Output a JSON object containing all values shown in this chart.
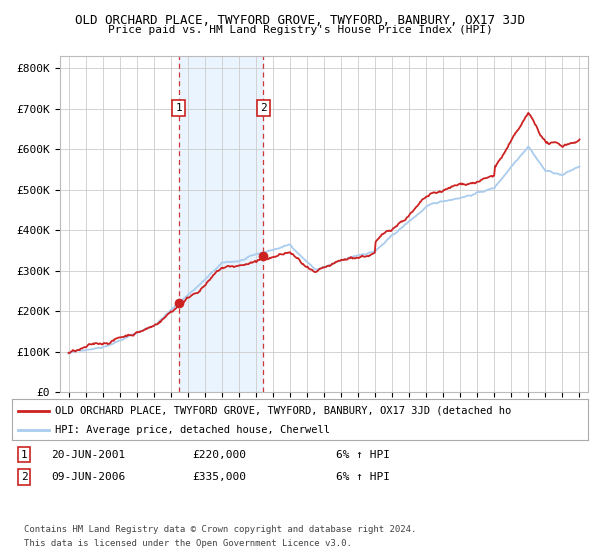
{
  "title": "OLD ORCHARD PLACE, TWYFORD GROVE, TWYFORD, BANBURY, OX17 3JD",
  "subtitle": "Price paid vs. HM Land Registry's House Price Index (HPI)",
  "ylim": [
    0,
    830000
  ],
  "yticks": [
    0,
    100000,
    200000,
    300000,
    400000,
    500000,
    600000,
    700000,
    800000
  ],
  "ytick_labels": [
    "£0",
    "£100K",
    "£200K",
    "£300K",
    "£400K",
    "£500K",
    "£600K",
    "£700K",
    "£800K"
  ],
  "background_color": "#ffffff",
  "plot_bg_color": "#ffffff",
  "grid_color": "#cccccc",
  "hpi_color": "#aaccee",
  "price_color": "#cc2222",
  "sale1_x": 2001.47,
  "sale1_y": 220000,
  "sale2_x": 2006.44,
  "sale2_y": 335000,
  "legend_price_label": "OLD ORCHARD PLACE, TWYFORD GROVE, TWYFORD, BANBURY, OX17 3JD (detached ho",
  "legend_hpi_label": "HPI: Average price, detached house, Cherwell",
  "annotation1_date": "20-JUN-2001",
  "annotation1_price": "£220,000",
  "annotation1_pct": "6% ↑ HPI",
  "annotation2_date": "09-JUN-2006",
  "annotation2_price": "£335,000",
  "annotation2_pct": "6% ↑ HPI",
  "footer1": "Contains HM Land Registry data © Crown copyright and database right 2024.",
  "footer2": "This data is licensed under the Open Government Licence v3.0.",
  "xmin": 1994.5,
  "xmax": 2025.5
}
